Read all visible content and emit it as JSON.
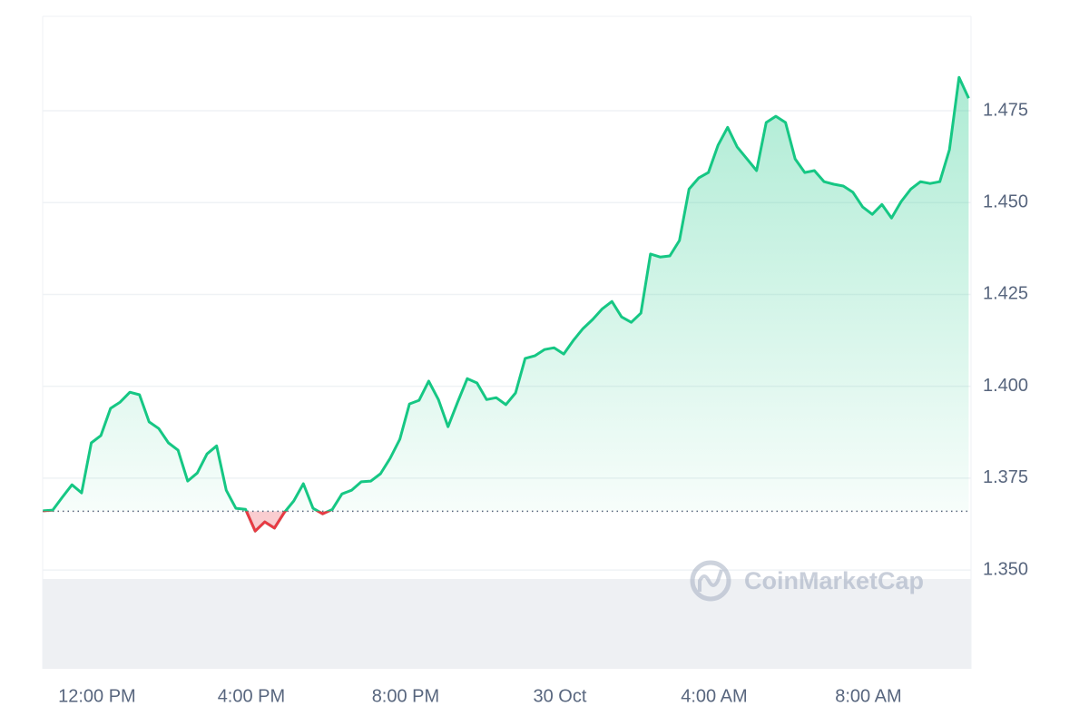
{
  "chart_data": {
    "type": "line",
    "watermark": "CoinMarketCap",
    "color": "#16c784",
    "down_color": "#ea3943",
    "baseline": 1.366,
    "grid": true,
    "xlim": [
      10.59,
      34.66
    ],
    "ylim": [
      1.3231,
      1.5007
    ],
    "xticks": [
      {
        "value": 12,
        "label": "12:00 PM"
      },
      {
        "value": 16,
        "label": "4:00 PM"
      },
      {
        "value": 20,
        "label": "8:00 PM"
      },
      {
        "value": 24,
        "label": "30 Oct"
      },
      {
        "value": 28,
        "label": "4:00 AM"
      },
      {
        "value": 32,
        "label": "8:00 AM"
      }
    ],
    "yticks": [
      {
        "value": 1.35,
        "label": "1.350"
      },
      1.375,
      {
        "value": 1.4,
        "label": "1.400"
      },
      1.425,
      {
        "value": 1.45,
        "label": "1.450"
      },
      1.475
    ],
    "x": [
      10.6,
      10.85,
      11.1,
      11.35,
      11.6,
      11.85,
      12.1,
      12.35,
      12.6,
      12.85,
      13.1,
      13.35,
      13.6,
      13.85,
      14.1,
      14.35,
      14.6,
      14.85,
      15.1,
      15.35,
      15.6,
      15.85,
      16.1,
      16.35,
      16.6,
      16.85,
      17.1,
      17.35,
      17.6,
      17.85,
      18.1,
      18.35,
      18.6,
      18.85,
      19.1,
      19.35,
      19.6,
      19.85,
      20.1,
      20.35,
      20.6,
      20.85,
      21.1,
      21.35,
      21.6,
      21.85,
      22.1,
      22.35,
      22.6,
      22.85,
      23.1,
      23.35,
      23.6,
      23.85,
      24.1,
      24.35,
      24.6,
      24.85,
      25.1,
      25.35,
      25.6,
      25.85,
      26.1,
      26.35,
      26.6,
      26.85,
      27.1,
      27.35,
      27.6,
      27.85,
      28.1,
      28.35,
      28.6,
      28.85,
      29.1,
      29.35,
      29.6,
      29.85,
      30.1,
      30.35,
      30.6,
      30.85,
      31.1,
      31.35,
      31.6,
      31.85,
      32.1,
      32.35,
      32.6,
      32.85,
      33.1,
      33.35,
      33.6,
      33.85,
      34.1,
      34.35,
      34.6
    ],
    "values": [
      1.3661,
      1.3663,
      1.3698,
      1.3732,
      1.371,
      1.3846,
      1.3866,
      1.394,
      1.3957,
      1.3984,
      1.3977,
      1.3903,
      1.3885,
      1.3846,
      1.3826,
      1.3742,
      1.3764,
      1.3816,
      1.3838,
      1.3717,
      1.3668,
      1.3665,
      1.3606,
      1.3631,
      1.3614,
      1.3656,
      1.3688,
      1.3735,
      1.3668,
      1.3653,
      1.3665,
      1.3707,
      1.3717,
      1.374,
      1.3742,
      1.3762,
      1.3804,
      1.3856,
      1.3952,
      1.3962,
      1.4014,
      1.3964,
      1.389,
      1.3957,
      1.4021,
      1.4009,
      1.3964,
      1.3969,
      1.395,
      1.3982,
      1.4076,
      1.4083,
      1.41,
      1.4105,
      1.4088,
      1.4125,
      1.4157,
      1.4182,
      1.4211,
      1.4231,
      1.4189,
      1.4174,
      1.4199,
      1.436,
      1.4352,
      1.4355,
      1.4397,
      1.4537,
      1.4567,
      1.4582,
      1.4656,
      1.4705,
      1.4651,
      1.4619,
      1.4587,
      1.4718,
      1.4735,
      1.4718,
      1.4619,
      1.4582,
      1.4587,
      1.4557,
      1.455,
      1.4545,
      1.4528,
      1.4488,
      1.4468,
      1.4495,
      1.4458,
      1.4503,
      1.4537,
      1.4557,
      1.4552,
      1.4557,
      1.4644,
      1.4841,
      1.4784
    ]
  }
}
